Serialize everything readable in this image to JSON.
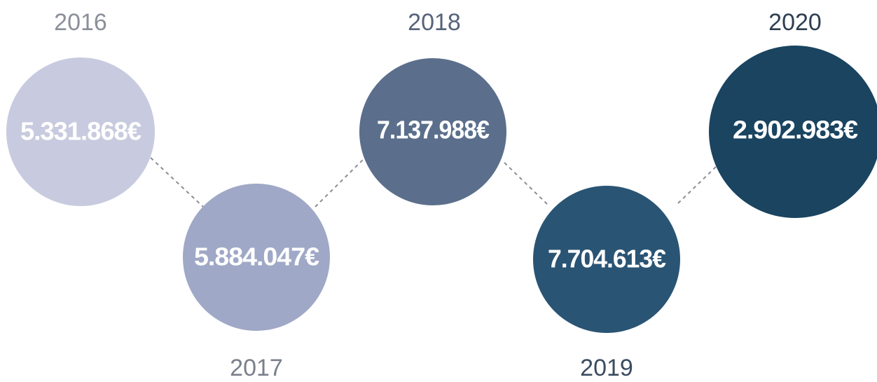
{
  "items": [
    {
      "year": "2016",
      "amount": "5.331.868€"
    },
    {
      "year": "2017",
      "amount": "5.884.047€"
    },
    {
      "year": "2018",
      "amount": "7.137.988€"
    },
    {
      "year": "2019",
      "amount": "7.704.613€"
    },
    {
      "year": "2020",
      "amount": "2.902.983€"
    }
  ]
}
